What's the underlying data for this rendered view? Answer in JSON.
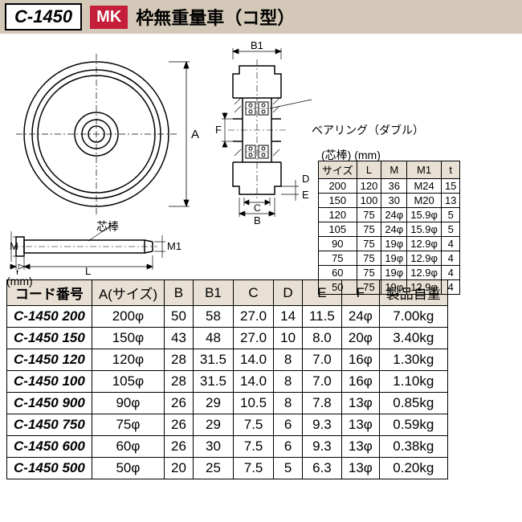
{
  "header": {
    "code": "C-1450",
    "brand": "MK",
    "title": "枠無重量車（コ型）"
  },
  "labels": {
    "bearing": "ベアリング（ダブル）",
    "shaft_heading": "(芯棒) (mm)",
    "shinbou": "芯棒",
    "mm": "(mm)",
    "dim_A": "A",
    "dim_B": "B",
    "dim_B1": "B1",
    "dim_C": "C",
    "dim_D": "D",
    "dim_E": "E",
    "dim_F": "F",
    "dim_L": "L",
    "dim_M": "M",
    "dim_M1": "M1",
    "dim_t": "t"
  },
  "shaft_table": {
    "columns": [
      "サイズ",
      "L",
      "M",
      "M1",
      "t"
    ],
    "rows": [
      [
        "200",
        "120",
        "36",
        "M24",
        "15"
      ],
      [
        "150",
        "100",
        "30",
        "M20",
        "13"
      ],
      [
        "120",
        "75",
        "24φ",
        "15.9φ",
        "5"
      ],
      [
        "105",
        "75",
        "24φ",
        "15.9φ",
        "5"
      ],
      [
        "90",
        "75",
        "19φ",
        "12.9φ",
        "4"
      ],
      [
        "75",
        "75",
        "19φ",
        "12.9φ",
        "4"
      ],
      [
        "60",
        "75",
        "19φ",
        "12.9φ",
        "4"
      ],
      [
        "50",
        "75",
        "19φ",
        "12.9φ",
        "4"
      ]
    ]
  },
  "main_table": {
    "columns": [
      "コード番号",
      "A(サイズ)",
      "B",
      "B1",
      "C",
      "D",
      "E",
      "F",
      "製品自重"
    ],
    "rows": [
      [
        "C-1450 200",
        "200φ",
        "50",
        "58",
        "27.0",
        "14",
        "11.5",
        "24φ",
        "7.00kg"
      ],
      [
        "C-1450 150",
        "150φ",
        "43",
        "48",
        "27.0",
        "10",
        "8.0",
        "20φ",
        "3.40kg"
      ],
      [
        "C-1450 120",
        "120φ",
        "28",
        "31.5",
        "14.0",
        "8",
        "7.0",
        "16φ",
        "1.30kg"
      ],
      [
        "C-1450 100",
        "105φ",
        "28",
        "31.5",
        "14.0",
        "8",
        "7.0",
        "16φ",
        "1.10kg"
      ],
      [
        "C-1450 900",
        "90φ",
        "26",
        "29",
        "10.5",
        "8",
        "7.8",
        "13φ",
        "0.85kg"
      ],
      [
        "C-1450 750",
        "75φ",
        "26",
        "29",
        "7.5",
        "6",
        "9.3",
        "13φ",
        "0.59kg"
      ],
      [
        "C-1450 600",
        "60φ",
        "26",
        "30",
        "7.5",
        "6",
        "9.3",
        "13φ",
        "0.38kg"
      ],
      [
        "C-1450 500",
        "50φ",
        "20",
        "25",
        "7.5",
        "5",
        "6.3",
        "13φ",
        "0.20kg"
      ]
    ]
  },
  "colors": {
    "header_bg": "#d4c9b8",
    "brand_bg": "#c41e3a",
    "table_header_bg": "#e8e0d4",
    "line": "#000000"
  }
}
